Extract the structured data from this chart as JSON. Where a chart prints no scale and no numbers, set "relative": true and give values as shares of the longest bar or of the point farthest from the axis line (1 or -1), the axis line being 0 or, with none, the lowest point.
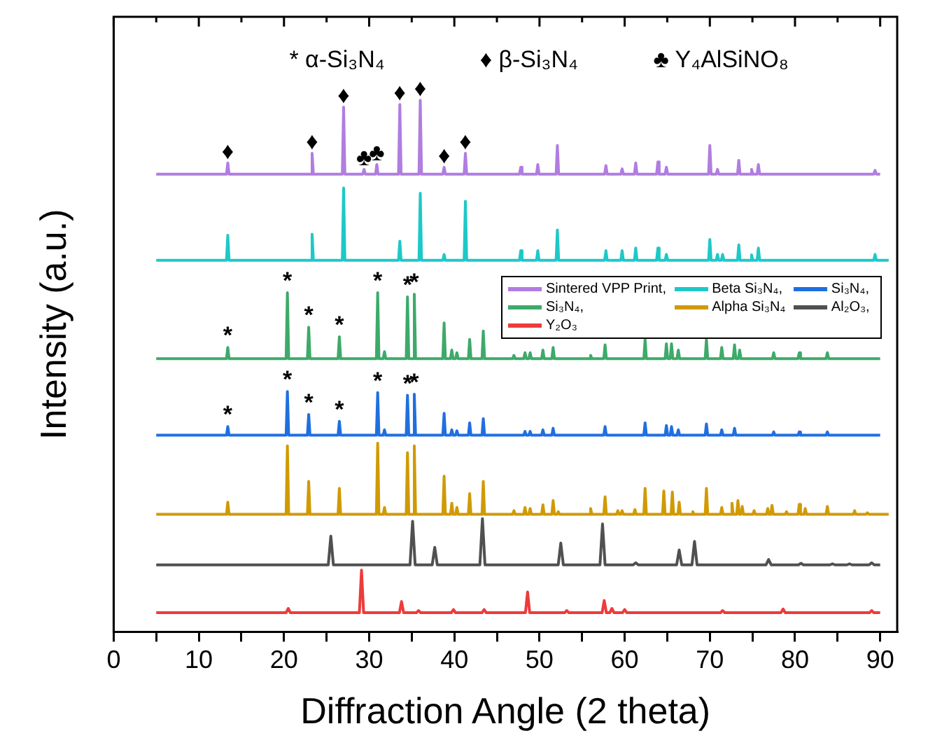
{
  "chart_data": {
    "type": "line",
    "xlabel": "Diffraction Angle (2 theta)",
    "ylabel": "Intensity (a.u.)",
    "relative": true,
    "xlim": [
      0,
      92
    ],
    "xticks": [
      0,
      {
        "value": 5,
        "label": null
      },
      10,
      {
        "value": 15,
        "label": null
      },
      20,
      {
        "value": 25,
        "label": null
      },
      30,
      {
        "value": 35,
        "label": null
      },
      40,
      {
        "value": 45,
        "label": null
      },
      50,
      {
        "value": 55,
        "label": null
      },
      60,
      {
        "value": 65,
        "label": null
      },
      70,
      {
        "value": 75,
        "label": null
      },
      80,
      {
        "value": 85,
        "label": null
      },
      90
    ],
    "legend": "right",
    "marker": "none",
    "line_style": "solid",
    "series": [
      {
        "name": "Sintered VPP Print,",
        "color": "#b07de0",
        "x": [
          5,
          13.25,
          13.4,
          13.55,
          23.15,
          23.3,
          23.45,
          26.85,
          27.0,
          27.15,
          29.25,
          29.4,
          29.55,
          30.75,
          30.9,
          31.05,
          33.45,
          33.6,
          33.75,
          35.85,
          36.0,
          36.15,
          38.65,
          38.8,
          38.95,
          41.15,
          41.3,
          41.45,
          47.65,
          47.8,
          47.95,
          49.65,
          49.8,
          49.95,
          51.95,
          52.1,
          52.25,
          57.65,
          57.8,
          57.95,
          59.55,
          59.7,
          59.85,
          61.15,
          61.3,
          61.45,
          63.75,
          63.9,
          64.05,
          64.75,
          64.9,
          65.05,
          69.85,
          70.0,
          70.15,
          70.75,
          70.9,
          71.05,
          73.25,
          73.4,
          73.55,
          74.75,
          74.9,
          75.05,
          75.55,
          75.7,
          75.85,
          89.25,
          89.4,
          89.55,
          90
        ],
        "values": [
          0.861,
          0.861,
          0.882,
          0.861,
          0.861,
          0.9,
          0.861,
          0.861,
          0.987,
          0.861,
          0.861,
          0.87,
          0.861,
          0.861,
          0.879,
          0.861,
          0.861,
          0.992,
          0.861,
          0.861,
          1.0,
          0.861,
          0.861,
          0.874,
          0.861,
          0.861,
          0.9,
          0.861,
          0.861,
          0.874,
          0.861,
          0.861,
          0.879,
          0.861,
          0.861,
          0.915,
          0.861,
          0.861,
          0.877,
          0.861,
          0.861,
          0.871,
          0.861,
          0.861,
          0.882,
          0.861,
          0.861,
          0.884,
          0.861,
          0.861,
          0.874,
          0.861,
          0.861,
          0.915,
          0.861,
          0.861,
          0.87,
          0.861,
          0.861,
          0.887,
          0.861,
          0.861,
          0.87,
          0.861,
          0.861,
          0.879,
          0.861,
          0.861,
          0.868,
          0.861,
          0.861
        ]
      },
      {
        "name": "Beta Si₃N₄,",
        "color": "#1ec8c8",
        "x": [
          5,
          13.25,
          13.4,
          13.55,
          23.15,
          23.3,
          23.45,
          26.85,
          27.0,
          27.15,
          33.45,
          33.6,
          33.75,
          35.85,
          36.0,
          36.15,
          38.65,
          38.8,
          38.95,
          41.15,
          41.3,
          41.45,
          47.65,
          47.8,
          47.95,
          49.65,
          49.8,
          49.95,
          51.95,
          52.1,
          52.25,
          57.65,
          57.8,
          57.95,
          59.55,
          59.7,
          59.85,
          61.15,
          61.3,
          61.45,
          63.75,
          63.9,
          64.05,
          64.75,
          64.9,
          65.05,
          69.85,
          70.0,
          70.15,
          70.75,
          70.9,
          71.05,
          71.35,
          71.5,
          71.65,
          73.25,
          73.4,
          73.55,
          74.75,
          74.9,
          75.05,
          75.55,
          75.7,
          75.85,
          89.25,
          89.4,
          89.55,
          91
        ],
        "values": [
          0.699,
          0.699,
          0.746,
          0.699,
          0.699,
          0.748,
          0.699,
          0.699,
          0.835,
          0.699,
          0.699,
          0.735,
          0.699,
          0.699,
          0.825,
          0.699,
          0.699,
          0.71,
          0.699,
          0.699,
          0.81,
          0.699,
          0.699,
          0.717,
          0.699,
          0.699,
          0.717,
          0.699,
          0.699,
          0.756,
          0.699,
          0.699,
          0.717,
          0.699,
          0.699,
          0.717,
          0.699,
          0.699,
          0.722,
          0.699,
          0.699,
          0.722,
          0.699,
          0.699,
          0.71,
          0.699,
          0.699,
          0.738,
          0.699,
          0.699,
          0.71,
          0.699,
          0.699,
          0.71,
          0.699,
          0.699,
          0.728,
          0.699,
          0.699,
          0.709,
          0.699,
          0.699,
          0.722,
          0.699,
          0.699,
          0.71,
          0.699,
          0.699
        ]
      },
      {
        "name": "Si₃N₄,",
        "color": "#1f6fe0",
        "x": [
          5,
          13.25,
          13.4,
          13.55,
          20.25,
          20.4,
          20.55,
          22.75,
          22.9,
          23.05,
          26.35,
          26.5,
          26.65,
          30.85,
          31.0,
          31.15,
          31.65,
          31.8,
          31.95,
          34.35,
          34.5,
          34.65,
          35.15,
          35.3,
          35.45,
          38.65,
          38.8,
          38.95,
          39.55,
          39.7,
          39.85,
          40.15,
          40.3,
          40.45,
          41.65,
          41.8,
          41.95,
          43.25,
          43.4,
          43.55,
          48.15,
          48.3,
          48.45,
          48.75,
          48.9,
          49.05,
          50.25,
          50.4,
          50.55,
          51.45,
          51.6,
          51.75,
          57.55,
          57.7,
          57.85,
          62.25,
          62.4,
          62.55,
          64.75,
          64.9,
          65.05,
          65.35,
          65.5,
          65.65,
          66.15,
          66.3,
          66.45,
          69.45,
          69.6,
          69.75,
          71.25,
          71.4,
          71.55,
          72.75,
          72.9,
          73.05,
          77.35,
          77.5,
          77.65,
          80.35,
          80.5,
          80.65,
          83.65,
          83.8,
          83.95,
          90
        ],
        "values": [
          0.37,
          0.37,
          0.386,
          0.37,
          0.37,
          0.452,
          0.37,
          0.37,
          0.409,
          0.37,
          0.37,
          0.396,
          0.37,
          0.37,
          0.45,
          0.37,
          0.37,
          0.38,
          0.37,
          0.37,
          0.445,
          0.37,
          0.37,
          0.447,
          0.37,
          0.37,
          0.411,
          0.37,
          0.37,
          0.38,
          0.37,
          0.37,
          0.378,
          0.37,
          0.37,
          0.393,
          0.37,
          0.37,
          0.401,
          0.37,
          0.37,
          0.377,
          0.37,
          0.37,
          0.377,
          0.37,
          0.37,
          0.38,
          0.37,
          0.37,
          0.383,
          0.37,
          0.37,
          0.386,
          0.37,
          0.37,
          0.393,
          0.37,
          0.37,
          0.388,
          0.37,
          0.37,
          0.386,
          0.37,
          0.37,
          0.38,
          0.37,
          0.37,
          0.391,
          0.37,
          0.37,
          0.38,
          0.37,
          0.37,
          0.383,
          0.37,
          0.37,
          0.376,
          0.37,
          0.37,
          0.376,
          0.37,
          0.37,
          0.376,
          0.37,
          0.37
        ]
      },
      {
        "name": "Si₃N₄,",
        "color": "#3daa6a",
        "x": [
          5,
          13.25,
          13.4,
          13.55,
          20.25,
          20.4,
          20.55,
          22.75,
          22.9,
          23.05,
          26.35,
          26.5,
          26.65,
          30.85,
          31.0,
          31.15,
          31.65,
          31.8,
          31.95,
          34.35,
          34.5,
          34.65,
          35.15,
          35.3,
          35.45,
          38.65,
          38.8,
          38.95,
          39.55,
          39.7,
          39.85,
          40.15,
          40.3,
          40.45,
          41.65,
          41.8,
          41.95,
          43.25,
          43.4,
          43.55,
          46.85,
          47.0,
          47.15,
          48.15,
          48.3,
          48.45,
          48.75,
          48.9,
          49.05,
          50.25,
          50.4,
          50.55,
          51.45,
          51.6,
          51.75,
          55.85,
          56.0,
          56.15,
          57.55,
          57.7,
          57.85,
          62.25,
          62.4,
          62.55,
          64.75,
          64.9,
          65.05,
          65.35,
          65.5,
          65.65,
          66.15,
          66.3,
          66.45,
          69.45,
          69.6,
          69.75,
          71.25,
          71.4,
          71.55,
          72.75,
          72.9,
          73.05,
          73.35,
          73.5,
          73.65,
          77.35,
          77.5,
          77.65,
          80.35,
          80.5,
          80.65,
          83.65,
          83.8,
          83.95,
          90
        ],
        "values": [
          0.514,
          0.514,
          0.535,
          0.514,
          0.514,
          0.638,
          0.514,
          0.514,
          0.573,
          0.514,
          0.514,
          0.555,
          0.514,
          0.514,
          0.638,
          0.514,
          0.514,
          0.527,
          0.514,
          0.514,
          0.63,
          0.514,
          0.514,
          0.635,
          0.514,
          0.514,
          0.581,
          0.514,
          0.514,
          0.53,
          0.514,
          0.514,
          0.525,
          0.514,
          0.514,
          0.55,
          0.514,
          0.514,
          0.566,
          0.514,
          0.514,
          0.52,
          0.514,
          0.514,
          0.525,
          0.514,
          0.514,
          0.525,
          0.514,
          0.514,
          0.53,
          0.514,
          0.514,
          0.535,
          0.514,
          0.514,
          0.52,
          0.514,
          0.514,
          0.54,
          0.514,
          0.514,
          0.55,
          0.514,
          0.514,
          0.542,
          0.514,
          0.514,
          0.542,
          0.514,
          0.514,
          0.53,
          0.514,
          0.514,
          0.55,
          0.514,
          0.514,
          0.535,
          0.514,
          0.514,
          0.54,
          0.514,
          0.514,
          0.53,
          0.514,
          0.514,
          0.525,
          0.514,
          0.514,
          0.525,
          0.514,
          0.514,
          0.525,
          0.514,
          0.514
        ]
      },
      {
        "name": "Alpha Si₃N₄",
        "color": "#d09a00",
        "x": [
          5,
          13.25,
          13.4,
          13.55,
          20.25,
          20.4,
          20.55,
          22.75,
          22.9,
          23.05,
          26.35,
          26.5,
          26.65,
          30.85,
          31.0,
          31.15,
          31.65,
          31.8,
          31.95,
          34.35,
          34.5,
          34.65,
          35.15,
          35.3,
          35.45,
          38.65,
          38.8,
          38.95,
          39.55,
          39.7,
          39.85,
          40.15,
          40.3,
          40.45,
          41.65,
          41.8,
          41.95,
          43.25,
          43.4,
          43.55,
          46.85,
          47.0,
          47.15,
          48.15,
          48.3,
          48.45,
          48.75,
          48.9,
          49.05,
          50.25,
          50.4,
          50.55,
          51.45,
          51.6,
          51.75,
          52.05,
          52.2,
          52.35,
          55.85,
          56.0,
          56.15,
          57.55,
          57.7,
          57.85,
          59.05,
          59.2,
          59.35,
          59.55,
          59.7,
          59.85,
          61.05,
          61.2,
          61.35,
          62.25,
          62.4,
          62.55,
          64.45,
          64.6,
          64.75,
          65.45,
          65.6,
          65.75,
          66.25,
          66.4,
          66.55,
          67.85,
          68.0,
          68.15,
          69.45,
          69.6,
          69.75,
          71.25,
          71.4,
          71.55,
          72.45,
          72.6,
          72.75,
          73.15,
          73.3,
          73.45,
          73.65,
          73.8,
          73.95,
          75.05,
          75.2,
          75.35,
          76.65,
          76.8,
          76.95,
          77.15,
          77.3,
          77.45,
          78.85,
          79.0,
          79.15,
          80.35,
          80.5,
          80.65,
          81.05,
          81.2,
          81.35,
          83.65,
          83.8,
          83.95,
          86.85,
          87.0,
          87.15,
          88.35,
          88.5,
          88.65,
          91
        ],
        "values": [
          0.221,
          0.221,
          0.244,
          0.221,
          0.221,
          0.35,
          0.221,
          0.221,
          0.283,
          0.221,
          0.221,
          0.27,
          0.221,
          0.221,
          0.355,
          0.221,
          0.221,
          0.234,
          0.221,
          0.221,
          0.337,
          0.221,
          0.221,
          0.35,
          0.221,
          0.221,
          0.293,
          0.221,
          0.221,
          0.242,
          0.221,
          0.221,
          0.234,
          0.221,
          0.221,
          0.26,
          0.221,
          0.221,
          0.283,
          0.221,
          0.221,
          0.228,
          0.221,
          0.221,
          0.234,
          0.221,
          0.221,
          0.232,
          0.221,
          0.221,
          0.239,
          0.221,
          0.221,
          0.247,
          0.221,
          0.221,
          0.226,
          0.221,
          0.221,
          0.232,
          0.221,
          0.221,
          0.254,
          0.221,
          0.221,
          0.228,
          0.221,
          0.221,
          0.228,
          0.221,
          0.221,
          0.23,
          0.221,
          0.221,
          0.27,
          0.221,
          0.221,
          0.265,
          0.221,
          0.221,
          0.263,
          0.221,
          0.221,
          0.244,
          0.221,
          0.221,
          0.226,
          0.221,
          0.221,
          0.27,
          0.221,
          0.221,
          0.234,
          0.221,
          0.221,
          0.242,
          0.221,
          0.221,
          0.247,
          0.221,
          0.221,
          0.236,
          0.221,
          0.221,
          0.228,
          0.221,
          0.221,
          0.232,
          0.221,
          0.221,
          0.238,
          0.221,
          0.221,
          0.226,
          0.221,
          0.221,
          0.24,
          0.221,
          0.221,
          0.232,
          0.221,
          0.221,
          0.236,
          0.221,
          0.221,
          0.228,
          0.221,
          0.221,
          0.224,
          0.221,
          0.221
        ]
      },
      {
        "name": "Al₂O₃,",
        "color": "#505050",
        "x": [
          5,
          25.2,
          25.5,
          25.8,
          34.8,
          35.1,
          35.4,
          37.4,
          37.7,
          38.0,
          43.0,
          43.3,
          43.6,
          52.2,
          52.5,
          52.8,
          57.1,
          57.4,
          57.7,
          61.0,
          61.3,
          61.6,
          66.1,
          66.4,
          66.7,
          67.9,
          68.2,
          68.5,
          76.6,
          76.9,
          77.2,
          80.4,
          80.7,
          81.0,
          84.1,
          84.4,
          84.7,
          86.1,
          86.4,
          86.7,
          88.7,
          89.0,
          89.3,
          90
        ],
        "values": [
          0.126,
          0.126,
          0.18,
          0.126,
          0.126,
          0.208,
          0.126,
          0.126,
          0.159,
          0.126,
          0.126,
          0.213,
          0.126,
          0.126,
          0.167,
          0.126,
          0.126,
          0.203,
          0.126,
          0.126,
          0.13,
          0.126,
          0.126,
          0.154,
          0.126,
          0.126,
          0.17,
          0.126,
          0.126,
          0.136,
          0.126,
          0.126,
          0.129,
          0.126,
          0.126,
          0.128,
          0.126,
          0.126,
          0.128,
          0.126,
          0.126,
          0.13,
          0.126,
          0.126
        ]
      },
      {
        "name": "Y₂O₃",
        "color": "#ee3b3b",
        "x": [
          5,
          20.25,
          20.5,
          20.75,
          28.85,
          29.1,
          29.35,
          33.55,
          33.8,
          34.05,
          35.55,
          35.8,
          36.05,
          39.65,
          39.9,
          40.15,
          43.25,
          43.5,
          43.75,
          48.35,
          48.6,
          48.85,
          52.95,
          53.2,
          53.45,
          57.35,
          57.6,
          57.85,
          58.25,
          58.5,
          58.75,
          59.75,
          60.0,
          60.25,
          71.25,
          71.5,
          71.75,
          78.35,
          78.6,
          78.85,
          88.75,
          89.0,
          89.25,
          90
        ],
        "values": [
          0.036,
          0.036,
          0.044,
          0.036,
          0.036,
          0.116,
          0.036,
          0.036,
          0.057,
          0.036,
          0.036,
          0.04,
          0.036,
          0.036,
          0.042,
          0.036,
          0.036,
          0.042,
          0.036,
          0.036,
          0.075,
          0.036,
          0.036,
          0.04,
          0.036,
          0.036,
          0.059,
          0.036,
          0.036,
          0.044,
          0.036,
          0.036,
          0.042,
          0.036,
          0.036,
          0.04,
          0.036,
          0.036,
          0.043,
          0.036,
          0.036,
          0.04,
          0.036,
          0.036
        ]
      }
    ],
    "annotations": [
      "* α-Si₃N₄",
      "♦ β-Si₃N₄",
      "♣ Y₄AlSiNO₈",
      {
        "text": "♦",
        "x": 13.4,
        "y": 0.882
      },
      {
        "text": "♦",
        "x": 23.3,
        "y": 0.9
      },
      {
        "text": "♦",
        "x": 27.0,
        "y": 0.987
      },
      {
        "text": "♣",
        "x": 29.4,
        "y": 0.87
      },
      {
        "text": "♣",
        "x": 30.9,
        "y": 0.879
      },
      {
        "text": "♦",
        "x": 33.6,
        "y": 0.992
      },
      {
        "text": "♦",
        "x": 36.0,
        "y": 1.0
      },
      {
        "text": "♦",
        "x": 38.8,
        "y": 0.874
      },
      {
        "text": "♦",
        "x": 41.3,
        "y": 0.9
      },
      {
        "text": "*",
        "x": 13.4,
        "y": 0.535
      },
      {
        "text": "*",
        "x": 20.4,
        "y": 0.638
      },
      {
        "text": "*",
        "x": 22.9,
        "y": 0.573
      },
      {
        "text": "*",
        "x": 26.5,
        "y": 0.555
      },
      {
        "text": "*",
        "x": 31.0,
        "y": 0.638
      },
      {
        "text": "*",
        "x": 34.5,
        "y": 0.63
      },
      {
        "text": "*",
        "x": 35.3,
        "y": 0.635
      },
      {
        "text": "*",
        "x": 13.4,
        "y": 0.386
      },
      {
        "text": "*",
        "x": 20.4,
        "y": 0.452
      },
      {
        "text": "*",
        "x": 22.9,
        "y": 0.409
      },
      {
        "text": "*",
        "x": 26.5,
        "y": 0.396
      },
      {
        "text": "*",
        "x": 31.0,
        "y": 0.45
      },
      {
        "text": "*",
        "x": 34.5,
        "y": 0.445
      },
      {
        "text": "*",
        "x": 35.3,
        "y": 0.447
      }
    ]
  }
}
